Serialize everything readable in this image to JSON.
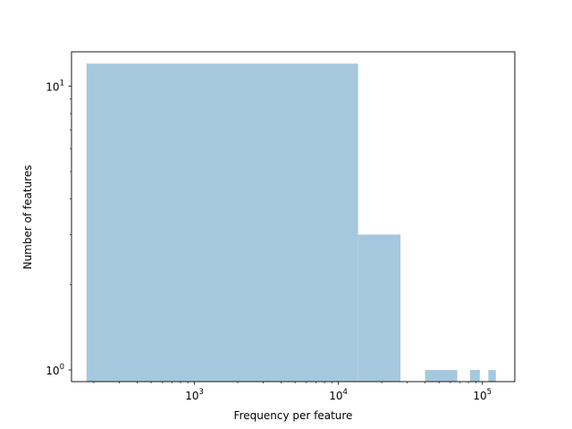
{
  "chart_data": {
    "type": "bar",
    "title": "",
    "xlabel": "Frequency per feature",
    "ylabel": "Number of features",
    "xscale": "log",
    "yscale": "log",
    "xlim": [
      140,
      168000
    ],
    "ylim": [
      0.91,
      13.2
    ],
    "grid": false,
    "bar_color": "#a6c8df",
    "x_ticks": [
      {
        "value": 1000,
        "base": "10",
        "exp": "3"
      },
      {
        "value": 10000,
        "base": "10",
        "exp": "4"
      },
      {
        "value": 100000,
        "base": "10",
        "exp": "5"
      }
    ],
    "y_ticks": [
      {
        "value": 1,
        "base": "10",
        "exp": "0"
      },
      {
        "value": 10,
        "base": "10",
        "exp": "1"
      }
    ],
    "bins": [
      {
        "x0": 178,
        "x1": 13700,
        "count": 12
      },
      {
        "x0": 13700,
        "x1": 27000,
        "count": 3
      },
      {
        "x0": 40000,
        "x1": 67000,
        "count": 1
      },
      {
        "x0": 82000,
        "x1": 96000,
        "count": 1
      },
      {
        "x0": 110000,
        "x1": 124000,
        "count": 1
      }
    ]
  }
}
